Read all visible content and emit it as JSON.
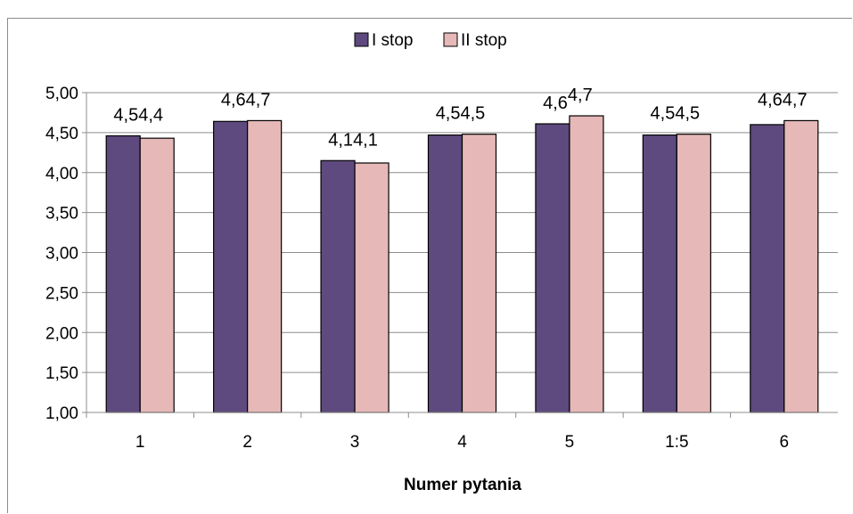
{
  "chart_data": {
    "type": "bar",
    "title": "",
    "xlabel": "Numer pytania",
    "ylabel": "",
    "ylim": [
      1.0,
      5.0
    ],
    "yticks": [
      "1,00",
      "1,50",
      "2,00",
      "2,50",
      "3,00",
      "3,50",
      "4,00",
      "4,50",
      "5,00"
    ],
    "categories": [
      "1",
      "2",
      "3",
      "4",
      "5",
      "1:5",
      "6"
    ],
    "series": [
      {
        "name": "I stop",
        "color": "#5e4a7e",
        "values": [
          4.46,
          4.64,
          4.15,
          4.47,
          4.61,
          4.47,
          4.6
        ],
        "labels": [
          "4,5",
          "4,6",
          "4,1",
          "4,5",
          "4,6",
          "4,5",
          "4,6"
        ]
      },
      {
        "name": "II stop",
        "color": "#e6b8b7",
        "values": [
          4.43,
          4.65,
          4.12,
          4.48,
          4.71,
          4.48,
          4.65
        ],
        "labels": [
          "4,4",
          "4,7",
          "4,1",
          "4,5",
          "4,7",
          "4,5",
          "4,7"
        ]
      }
    ],
    "legend_position": "top-center",
    "grid": true
  }
}
